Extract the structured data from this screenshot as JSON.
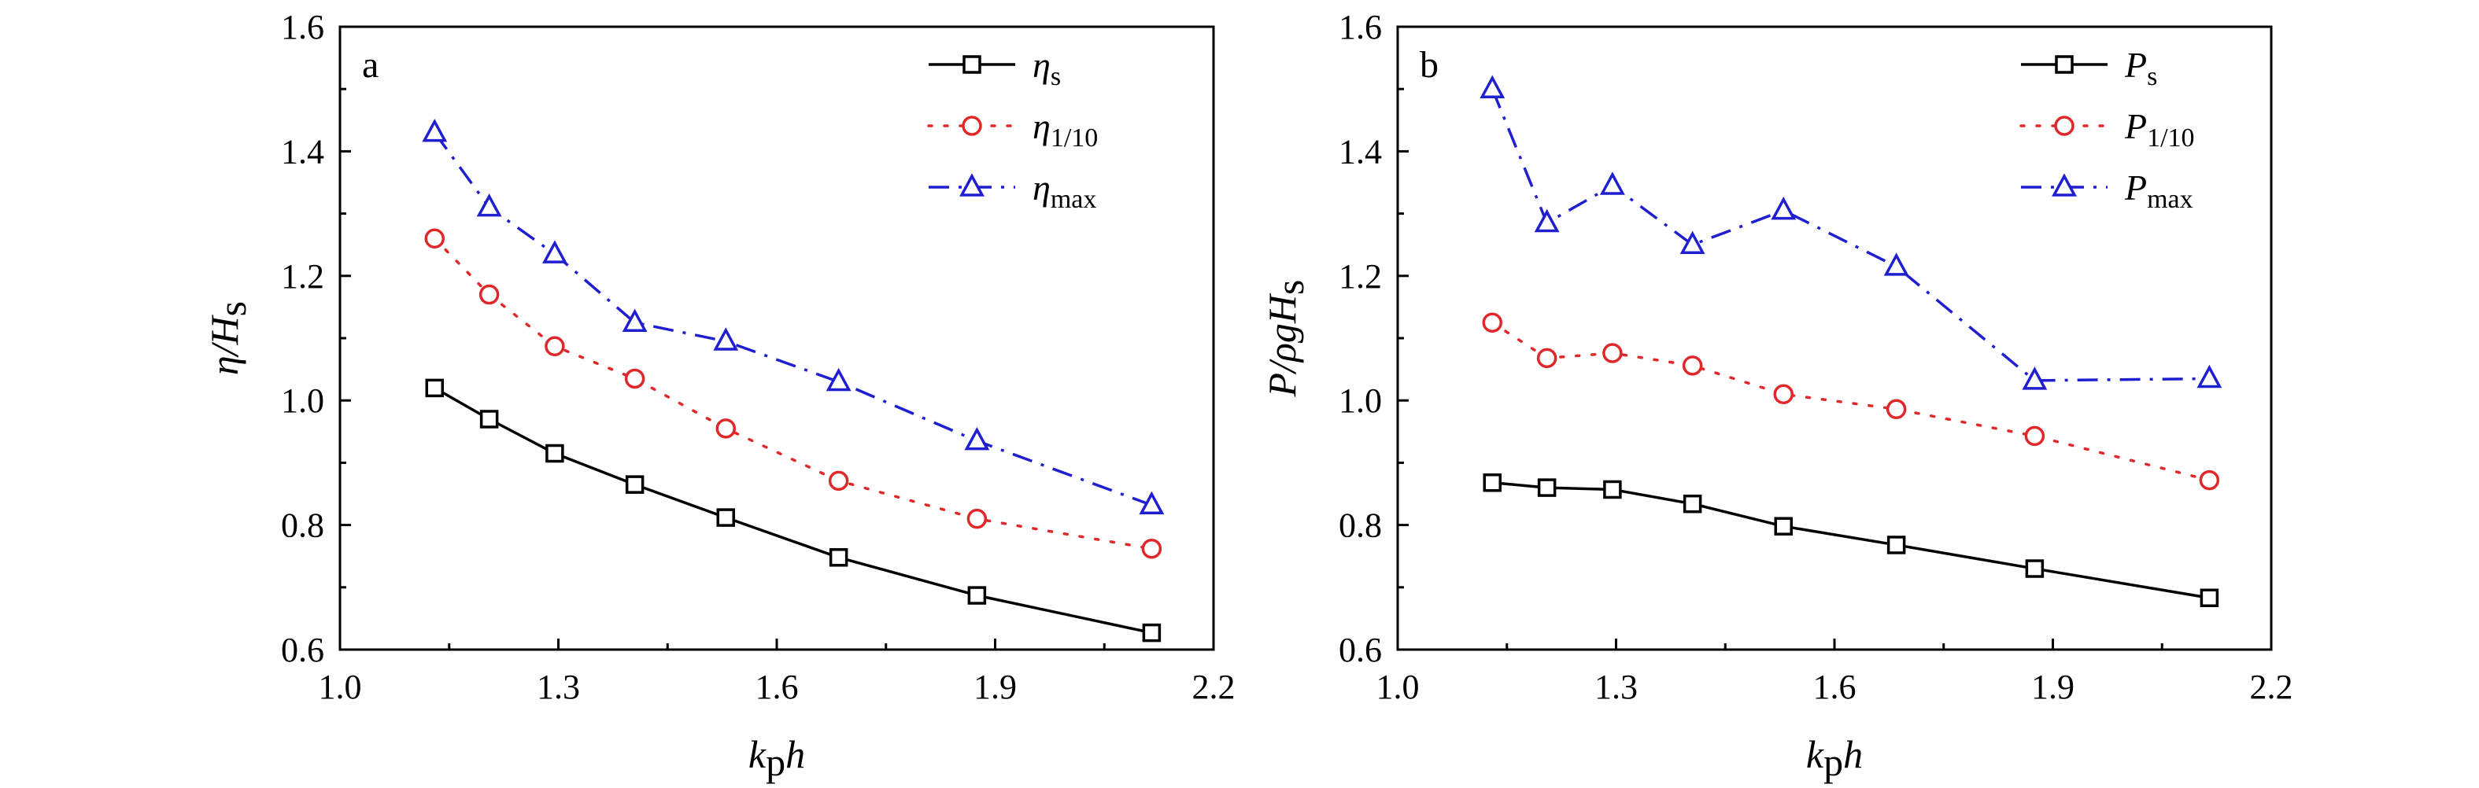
{
  "chart_data": [
    {
      "type": "line",
      "panel_label": "a",
      "xlabel": {
        "main": "k",
        "sub": "p",
        "tail": "h"
      },
      "ylabel": {
        "main": "η/H",
        "sub": "s"
      },
      "xlim": [
        1.0,
        2.2
      ],
      "ylim": [
        0.6,
        1.6
      ],
      "xticks": [
        "1.0",
        "1.3",
        "1.6",
        "1.9",
        "2.2"
      ],
      "yticks": [
        "0.6",
        "0.8",
        "1.0",
        "1.2",
        "1.4",
        "1.6"
      ],
      "x": [
        1.13,
        1.205,
        1.295,
        1.405,
        1.53,
        1.685,
        1.875,
        2.115
      ],
      "series": [
        {
          "name": {
            "main": "η",
            "sub": "s"
          },
          "color": "#000000",
          "dash": "solid",
          "marker": "square",
          "values": [
            1.02,
            0.97,
            0.915,
            0.865,
            0.812,
            0.748,
            0.687,
            0.627
          ]
        },
        {
          "name": {
            "main": "η",
            "sub": "1/10"
          },
          "color": "#e0282a",
          "dash": "dot",
          "marker": "circle",
          "values": [
            1.26,
            1.17,
            1.087,
            1.035,
            0.955,
            0.871,
            0.81,
            0.762
          ]
        },
        {
          "name": {
            "main": "η",
            "sub": "max"
          },
          "color": "#1f1fd0",
          "dash": "dashdot",
          "marker": "triangle",
          "values": [
            1.43,
            1.31,
            1.235,
            1.125,
            1.095,
            1.03,
            0.935,
            0.832
          ]
        }
      ],
      "legend": "top-right",
      "grid": false
    },
    {
      "type": "line",
      "panel_label": "b",
      "xlabel": {
        "main": "k",
        "sub": "p",
        "tail": "h"
      },
      "ylabel": {
        "main": "P/ρgH",
        "sub": "s"
      },
      "xlim": [
        1.0,
        2.2
      ],
      "ylim": [
        0.6,
        1.6
      ],
      "xticks": [
        "1.0",
        "1.3",
        "1.6",
        "1.9",
        "2.2"
      ],
      "yticks": [
        "0.6",
        "0.8",
        "1.0",
        "1.2",
        "1.4",
        "1.6"
      ],
      "x": [
        1.13,
        1.205,
        1.295,
        1.405,
        1.53,
        1.685,
        1.875,
        2.115
      ],
      "series": [
        {
          "name": {
            "main": "P",
            "sub": "s"
          },
          "color": "#000000",
          "dash": "solid",
          "marker": "square",
          "values": [
            0.868,
            0.86,
            0.857,
            0.834,
            0.798,
            0.768,
            0.73,
            0.683
          ]
        },
        {
          "name": {
            "main": "P",
            "sub": "1/10"
          },
          "color": "#e0282a",
          "dash": "dot",
          "marker": "circle",
          "values": [
            1.125,
            1.068,
            1.076,
            1.056,
            1.01,
            0.986,
            0.943,
            0.872
          ]
        },
        {
          "name": {
            "main": "P",
            "sub": "max"
          },
          "color": "#1f1fd0",
          "dash": "dashdot",
          "marker": "triangle",
          "values": [
            1.5,
            1.285,
            1.345,
            1.25,
            1.305,
            1.215,
            1.032,
            1.035
          ]
        }
      ],
      "legend": "top-right",
      "grid": false
    }
  ]
}
